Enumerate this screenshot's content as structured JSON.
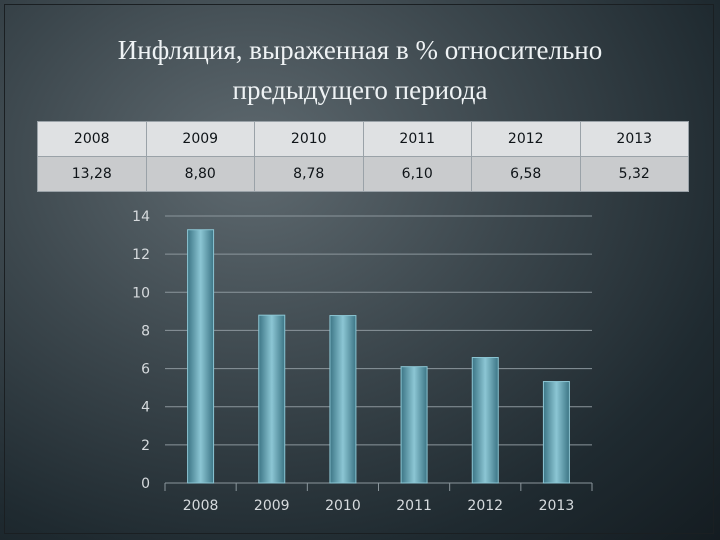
{
  "slide": {
    "title": "Инфляция, выраженная в % относительно\nпредыдущего периода"
  },
  "table": {
    "years": [
      "2008",
      "2009",
      "2010",
      "2011",
      "2012",
      "2013"
    ],
    "values": [
      "13,28",
      "8,80",
      "8,78",
      "6,10",
      "6,58",
      "5,32"
    ]
  },
  "colors": {
    "bar": "#5f9fb0",
    "bar_light": "#8cc6d4",
    "bar_dark": "#3c7585",
    "grid": "#8b969c"
  },
  "chart_data": {
    "type": "bar",
    "categories": [
      "2008",
      "2009",
      "2010",
      "2011",
      "2012",
      "2013"
    ],
    "values": [
      13.28,
      8.8,
      8.78,
      6.1,
      6.58,
      5.32
    ],
    "title": "",
    "xlabel": "",
    "ylabel": "",
    "ylim": [
      0,
      14
    ],
    "yticks": [
      "0",
      "2",
      "4",
      "6",
      "8",
      "10",
      "12",
      "14"
    ],
    "grid": true,
    "legend": "none"
  }
}
